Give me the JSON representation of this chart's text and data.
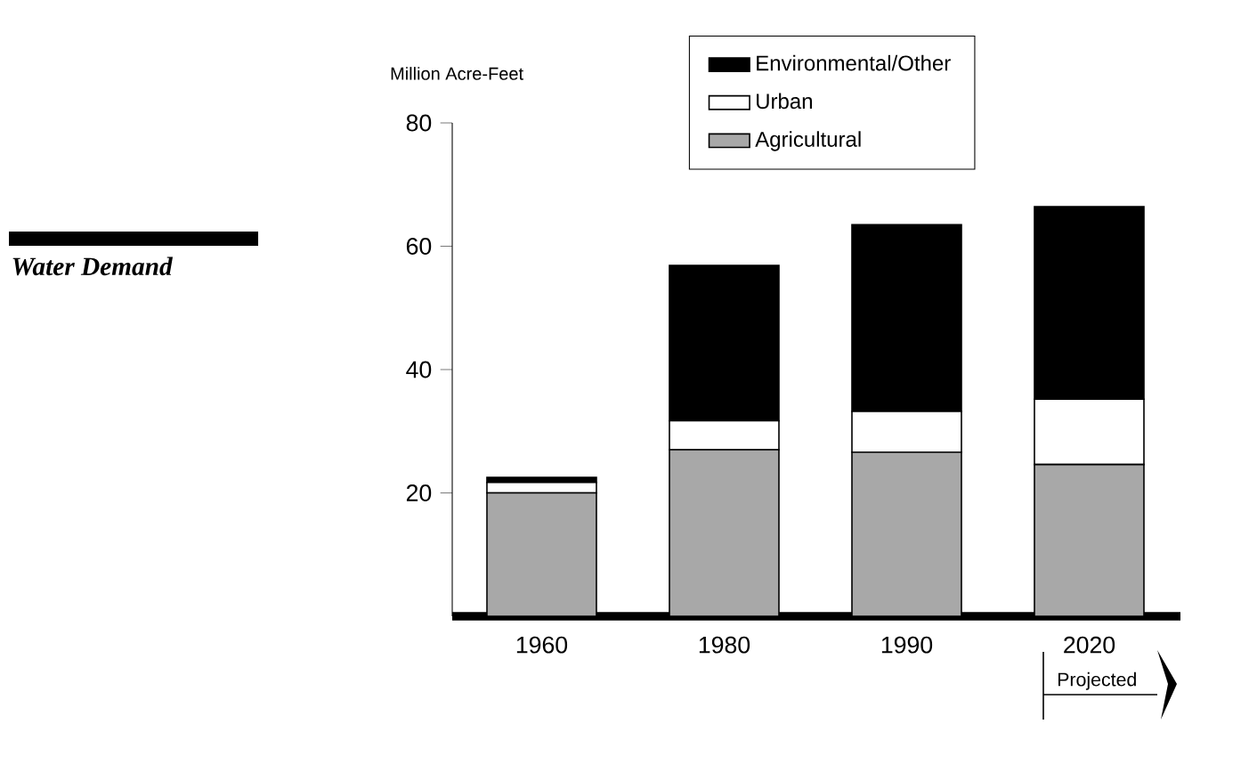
{
  "chart_data": {
    "type": "bar",
    "stacked": true,
    "title": "Water Demand",
    "ylabel": "Million Acre-Feet",
    "categories": [
      "1960",
      "1980",
      "1990",
      "2020"
    ],
    "series": [
      {
        "name": "Agricultural",
        "color": "#a8a8a8",
        "values": [
          20,
          27,
          26.6,
          24.6
        ]
      },
      {
        "name": "Urban",
        "color": "#ffffff",
        "values": [
          1.7,
          4.7,
          6.6,
          10.6
        ]
      },
      {
        "name": "Environmental/Other",
        "color": "#000000",
        "values": [
          0.8,
          25.2,
          30.3,
          31.2
        ]
      }
    ],
    "ylim": [
      0,
      80
    ],
    "yticks": [
      20,
      40,
      60,
      80
    ],
    "legend": "top",
    "grid": false,
    "annotations": [
      "Projected"
    ]
  }
}
